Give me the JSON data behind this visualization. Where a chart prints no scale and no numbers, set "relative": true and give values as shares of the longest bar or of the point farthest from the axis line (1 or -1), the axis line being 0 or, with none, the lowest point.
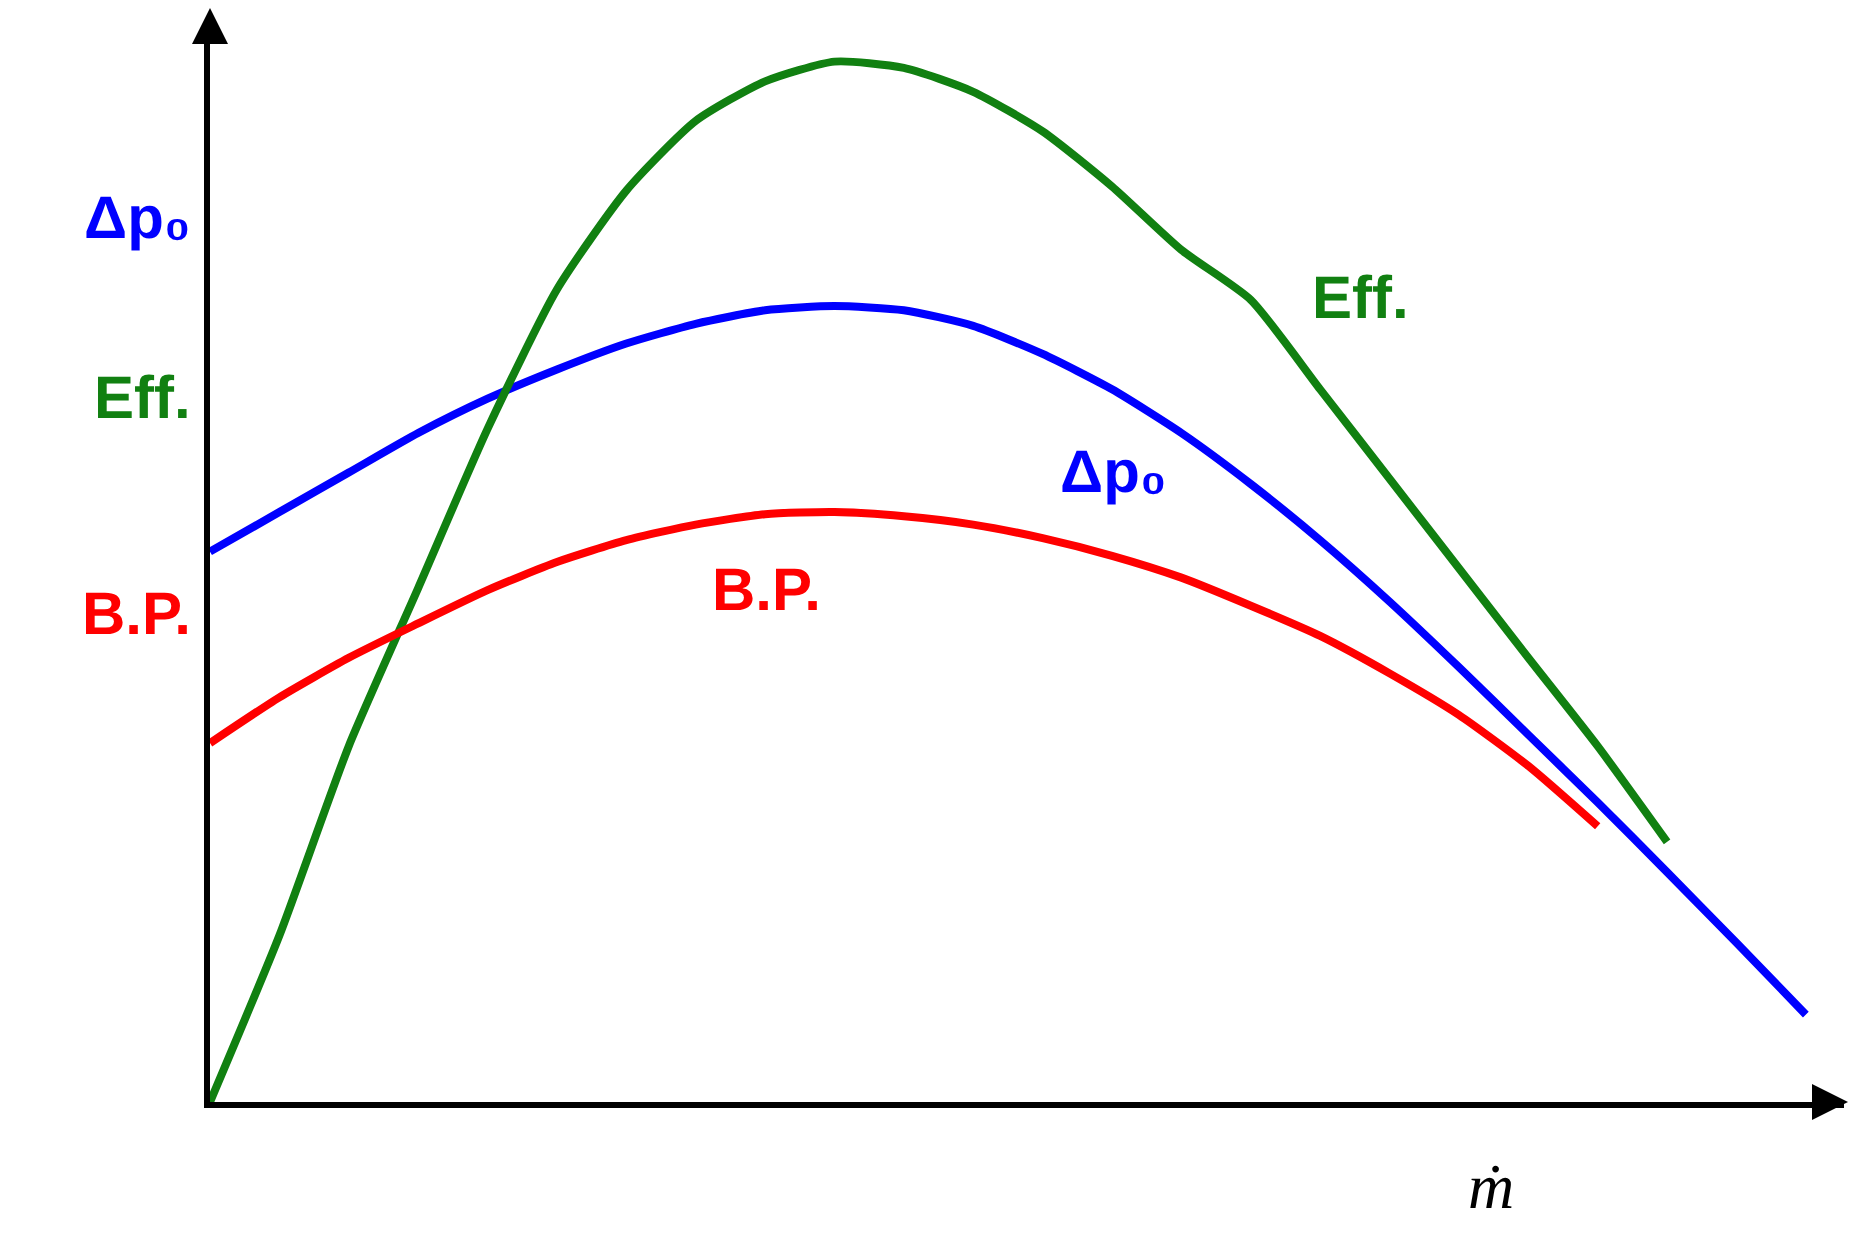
{
  "chart_data": {
    "type": "line",
    "relative": true,
    "xlabel": "ṁ",
    "categories": [
      null,
      null,
      null,
      null,
      null,
      null,
      null,
      null,
      null,
      null,
      null,
      null,
      null,
      null,
      null,
      null,
      null,
      null,
      null,
      null,
      null,
      null,
      null,
      null
    ],
    "annotations": [
      "Δp₀",
      "Eff.",
      "B.P."
    ],
    "grid": false,
    "legend": false,
    "marker": "none",
    "line_style": "solid",
    "series": [
      {
        "name": "Δp₀",
        "color": "#0000ff",
        "values": [
          0.529,
          0.567,
          0.605,
          0.643,
          0.676,
          0.704,
          0.729,
          0.748,
          0.761,
          0.765,
          0.761,
          0.746,
          0.719,
          0.685,
          0.643,
          0.594,
          0.54,
          0.481,
          0.418,
          0.353,
          0.288,
          0.221,
          0.153,
          0.084
        ]
      },
      {
        "name": "Eff.",
        "color": "#118011",
        "values": [
          0,
          0.16,
          0.342,
          0.494,
          0.647,
          0.781,
          0.876,
          0.943,
          0.981,
          1,
          0.994,
          0.971,
          0.933,
          0.88,
          0.819,
          0.771,
          0.685,
          0.599,
          0.513,
          0.427,
          0.342,
          0.25,
          null,
          null
        ]
      },
      {
        "name": "B.P.",
        "color": "#ff0000",
        "values": [
          0.345,
          0.389,
          0.427,
          0.46,
          0.492,
          0.519,
          0.54,
          0.555,
          0.565,
          0.567,
          0.563,
          0.555,
          0.542,
          0.525,
          0.504,
          0.477,
          0.448,
          0.412,
          0.372,
          0.323,
          0.265,
          null,
          null,
          null
        ]
      }
    ]
  }
}
